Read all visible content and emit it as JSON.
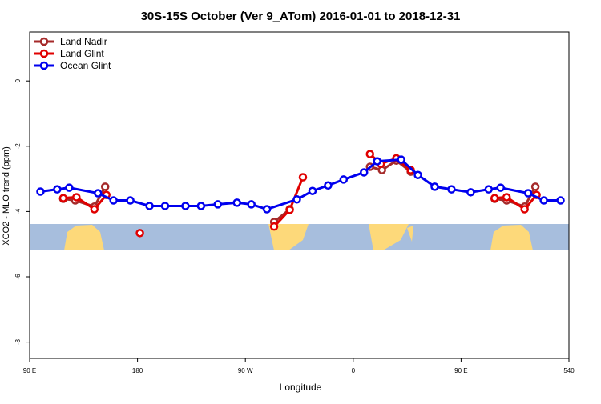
{
  "chart_data": {
    "type": "line",
    "title": "30S-15S October (Ver 9_ATom)   2016-01-01 to 2018-12-31",
    "x_label": "Longitude",
    "y_label": "XCO2 - MLO trend (ppm)",
    "xlim": [
      90,
      540
    ],
    "ylim": [
      -8.5,
      1.5
    ],
    "xticks": [
      {
        "value": 90,
        "label": "90 E"
      },
      180,
      {
        "value": 270,
        "label": "90 W"
      },
      {
        "value": 360,
        "label": "0"
      },
      {
        "value": 450,
        "label": "90 E"
      },
      540
    ],
    "yticks": [
      0,
      -2,
      -4,
      -6,
      -8
    ],
    "legend": "top-left",
    "series": [
      {
        "name": "Land Nadir",
        "color": "#a52a2a",
        "x": [
          118,
          128,
          144,
          153,
          null,
          294,
          307,
          null,
          374,
          384,
          396,
          408,
          null,
          478,
          488,
          503,
          512
        ],
        "values": [
          -3.61,
          -3.66,
          -3.85,
          -3.24,
          null,
          -4.32,
          -3.93,
          null,
          -2.63,
          -2.73,
          -2.44,
          -2.78,
          null,
          -3.61,
          -3.66,
          -3.85,
          -3.24
        ]
      },
      {
        "name": "Land Glint",
        "color": "#e00000",
        "x": [
          118,
          129,
          144,
          154,
          null,
          182,
          null,
          294,
          307,
          318,
          null,
          374,
          383,
          396,
          408,
          null,
          478,
          488,
          503,
          513
        ],
        "values": [
          -3.59,
          -3.56,
          -3.93,
          -3.49,
          null,
          -4.66,
          null,
          -4.46,
          -3.95,
          -2.95,
          null,
          -2.24,
          -2.54,
          -2.37,
          -2.73,
          null,
          -3.59,
          -3.56,
          -3.93,
          -3.49
        ]
      },
      {
        "name": "Ocean Glint",
        "color": "#0000ee",
        "x": [
          99,
          113,
          123,
          147,
          160,
          174,
          190,
          203,
          220,
          233,
          247,
          263,
          275,
          288,
          313,
          326,
          339,
          352,
          369,
          380,
          400,
          414,
          428,
          442,
          458,
          473,
          483,
          506,
          519,
          533
        ],
        "values": [
          -3.39,
          -3.32,
          -3.27,
          -3.44,
          -3.66,
          -3.66,
          -3.83,
          -3.83,
          -3.83,
          -3.83,
          -3.78,
          -3.73,
          -3.78,
          -3.93,
          -3.63,
          -3.37,
          -3.2,
          -3.02,
          -2.8,
          -2.46,
          -2.41,
          -2.88,
          -3.24,
          -3.32,
          -3.41,
          -3.32,
          -3.27,
          -3.44,
          -3.66,
          -3.66
        ]
      }
    ]
  }
}
